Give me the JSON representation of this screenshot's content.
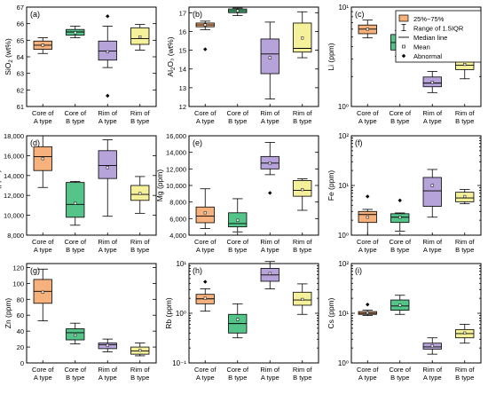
{
  "legend": {
    "items": [
      {
        "kind": "box",
        "label": "25%~75%"
      },
      {
        "kind": "whisker",
        "label": "Range of 1.5IQR"
      },
      {
        "kind": "median",
        "label": "Median line"
      },
      {
        "kind": "mean",
        "label": "Mean"
      },
      {
        "kind": "abnormal",
        "label": "Abnormal"
      }
    ]
  },
  "chart_data": [
    {
      "type": "box",
      "panel": "(a)",
      "ylabel": "SiO2 (wt%)",
      "ylabel_main": "SiO",
      "ylabel_sub": "2",
      "ylabel_tail": " (wt%)",
      "scale": "linear",
      "ylim": [
        61,
        67
      ],
      "ticks": [
        61,
        62,
        63,
        64,
        65,
        66,
        67
      ],
      "tick_labels": [
        "61",
        "62",
        "63",
        "64",
        "65",
        "66",
        "67"
      ],
      "categories": [
        "Core of A type",
        "Core of B type",
        "Rim of A type",
        "Rim of B type"
      ],
      "boxes": [
        {
          "q1": 64.45,
          "median": 64.7,
          "q3": 64.95,
          "wlow": 64.2,
          "whigh": 65.15,
          "mean": 64.7,
          "outliers": []
        },
        {
          "q1": 65.3,
          "median": 65.5,
          "q3": 65.65,
          "wlow": 65.15,
          "whigh": 65.85,
          "mean": 65.45,
          "outliers": []
        },
        {
          "q1": 63.8,
          "median": 64.35,
          "q3": 64.95,
          "wlow": 63.35,
          "whigh": 65.85,
          "mean": 64.3,
          "outliers": [
            66.45,
            61.65
          ]
        },
        {
          "q1": 64.75,
          "median": 65.1,
          "q3": 65.75,
          "wlow": 64.4,
          "whigh": 65.95,
          "mean": 65.2,
          "outliers": []
        }
      ]
    },
    {
      "type": "box",
      "panel": "(b)",
      "ylabel": "Al2O3 (wt%)",
      "ylabel_main": "Al",
      "ylabel_sub": "2",
      "ylabel_tail": "O₃ (wt%)",
      "scale": "linear",
      "ylim": [
        12,
        17.3
      ],
      "ticks": [
        12,
        13,
        14,
        15,
        16,
        17
      ],
      "tick_labels": [
        "12",
        "13",
        "14",
        "15",
        "16",
        "17"
      ],
      "categories": [
        "Core of A type",
        "Core of B type",
        "Rim of A type",
        "Rim of B type"
      ],
      "boxes": [
        {
          "q1": 16.25,
          "median": 16.35,
          "q3": 16.45,
          "wlow": 16.1,
          "whigh": 16.55,
          "mean": 16.35,
          "outliers": [
            15.05
          ]
        },
        {
          "q1": 17.0,
          "median": 17.1,
          "q3": 17.2,
          "wlow": 16.85,
          "whigh": 17.25,
          "mean": 17.1,
          "outliers": []
        },
        {
          "q1": 13.75,
          "median": 14.8,
          "q3": 15.6,
          "wlow": 12.4,
          "whigh": 16.5,
          "mean": 14.6,
          "outliers": []
        },
        {
          "q1": 14.9,
          "median": 15.1,
          "q3": 16.45,
          "wlow": 14.6,
          "whigh": 17.05,
          "mean": 15.65,
          "outliers": []
        }
      ]
    },
    {
      "type": "box",
      "panel": "(c)",
      "ylabel": "Li (ppm)",
      "scale": "log",
      "ylim": [
        1,
        10
      ],
      "ticks": [
        1,
        10
      ],
      "tick_labels": [
        "10⁰",
        "10¹"
      ],
      "categories": [
        "Core of A type",
        "Core of B type",
        "Rim of A type",
        "Rim of B type"
      ],
      "boxes": [
        {
          "q1": 5.4,
          "median": 6.0,
          "q3": 6.6,
          "wlow": 4.9,
          "whigh": 7.4,
          "mean": 6.0,
          "outliers": []
        },
        {
          "q1": 3.7,
          "median": 4.4,
          "q3": 5.3,
          "wlow": 3.2,
          "whigh": 5.8,
          "mean": 4.4,
          "outliers": []
        },
        {
          "q1": 1.58,
          "median": 1.72,
          "q3": 1.98,
          "wlow": 1.38,
          "whigh": 2.25,
          "mean": 1.75,
          "outliers": []
        },
        {
          "q1": 2.35,
          "median": 2.6,
          "q3": 2.95,
          "wlow": 1.9,
          "whigh": 3.55,
          "mean": 2.65,
          "outliers": []
        }
      ]
    },
    {
      "type": "box",
      "panel": "(d)",
      "ylabel": "Na (ppm)",
      "scale": "linear",
      "ylim": [
        8000,
        18000
      ],
      "ticks": [
        8000,
        10000,
        12000,
        14000,
        16000,
        18000
      ],
      "tick_labels": [
        "8,000",
        "10,000",
        "12,000",
        "14,000",
        "16,000",
        "18,000"
      ],
      "categories": [
        "Core of A type",
        "Core of B type",
        "Rim of A type",
        "Rim of B type"
      ],
      "boxes": [
        {
          "q1": 14500,
          "median": 15900,
          "q3": 16900,
          "wlow": 12800,
          "whigh": 18000,
          "mean": 15700,
          "outliers": []
        },
        {
          "q1": 9800,
          "median": 11100,
          "q3": 13300,
          "wlow": 9000,
          "whigh": 13400,
          "mean": 11200,
          "outliers": []
        },
        {
          "q1": 13700,
          "median": 15000,
          "q3": 16500,
          "wlow": 9900,
          "whigh": 17600,
          "mean": 14800,
          "outliers": []
        },
        {
          "q1": 11500,
          "median": 12100,
          "q3": 13000,
          "wlow": 10200,
          "whigh": 13900,
          "mean": 12200,
          "outliers": []
        }
      ]
    },
    {
      "type": "box",
      "panel": "(e)",
      "ylabel": "Mg (ppm)",
      "scale": "linear",
      "ylim": [
        4000,
        16000
      ],
      "ticks": [
        4000,
        6000,
        8000,
        10000,
        12000,
        14000,
        16000
      ],
      "tick_labels": [
        "4,000",
        "6,000",
        "8,000",
        "10,000",
        "12,000",
        "14,000",
        "16,000"
      ],
      "categories": [
        "Core of A type",
        "Core of B type",
        "Rim of A type",
        "Rim of B type"
      ],
      "boxes": [
        {
          "q1": 5500,
          "median": 6300,
          "q3": 7400,
          "wlow": 4800,
          "whigh": 9600,
          "mean": 6700,
          "outliers": []
        },
        {
          "q1": 5000,
          "median": 5400,
          "q3": 6700,
          "wlow": 4400,
          "whigh": 8400,
          "mean": 5800,
          "outliers": []
        },
        {
          "q1": 12000,
          "median": 12700,
          "q3": 13500,
          "wlow": 11300,
          "whigh": 15200,
          "mean": 12700,
          "outliers": [
            9100
          ]
        },
        {
          "q1": 8700,
          "median": 9400,
          "q3": 10600,
          "wlow": 7000,
          "whigh": 10800,
          "mean": 9500,
          "outliers": []
        }
      ]
    },
    {
      "type": "box",
      "panel": "(f)",
      "ylabel": "Fe (ppm)",
      "scale": "log",
      "ylim": [
        1,
        100
      ],
      "ticks": [
        1,
        10,
        100
      ],
      "tick_labels": [
        "10⁰",
        "10¹",
        "10²"
      ],
      "categories": [
        "Core of A type",
        "Core of B type",
        "Rim of A type",
        "Rim of B type"
      ],
      "boxes": [
        {
          "q1": 1.8,
          "median": 2.6,
          "q3": 3.0,
          "wlow": 1.0,
          "whigh": 3.3,
          "mean": 2.3,
          "outliers": [
            6.0
          ]
        },
        {
          "q1": 1.8,
          "median": 2.3,
          "q3": 2.7,
          "wlow": 1.2,
          "whigh": 2.8,
          "mean": 2.3,
          "outliers": [
            5.0
          ]
        },
        {
          "q1": 3.8,
          "median": 7.8,
          "q3": 14.5,
          "wlow": 2.3,
          "whigh": 21.0,
          "mean": 10.0,
          "outliers": []
        },
        {
          "q1": 4.7,
          "median": 5.6,
          "q3": 7.3,
          "wlow": 4.3,
          "whigh": 8.3,
          "mean": 6.0,
          "outliers": []
        }
      ]
    },
    {
      "type": "box",
      "panel": "(g)",
      "ylabel": "Zn (ppm)",
      "scale": "linear",
      "ylim": [
        0,
        125
      ],
      "ticks": [
        0,
        20,
        40,
        60,
        80,
        100,
        120
      ],
      "tick_labels": [
        "0",
        "20",
        "40",
        "60",
        "80",
        "100",
        "120"
      ],
      "categories": [
        "Core of A type",
        "Core of B type",
        "Rim of A type",
        "Rim of B type"
      ],
      "boxes": [
        {
          "q1": 75,
          "median": 90,
          "q3": 105,
          "wlow": 53,
          "whigh": 118,
          "mean": 89,
          "outliers": []
        },
        {
          "q1": 29,
          "median": 38,
          "q3": 43,
          "wlow": 24,
          "whigh": 50,
          "mean": 35,
          "outliers": []
        },
        {
          "q1": 18,
          "median": 23,
          "q3": 25,
          "wlow": 14,
          "whigh": 30,
          "mean": 22,
          "outliers": []
        },
        {
          "q1": 11,
          "median": 15,
          "q3": 20,
          "wlow": 9,
          "whigh": 25,
          "mean": 16,
          "outliers": []
        }
      ]
    },
    {
      "type": "box",
      "panel": "(h)",
      "ylabel": "Rb (ppm)",
      "scale": "log",
      "ylim": [
        0.1,
        10
      ],
      "ticks": [
        0.1,
        1,
        10
      ],
      "tick_labels": [
        "10⁻¹",
        "10⁰",
        "10¹"
      ],
      "categories": [
        "Core of A type",
        "Core of B type",
        "Rim of A type",
        "Rim of B type"
      ],
      "boxes": [
        {
          "q1": 1.55,
          "median": 1.95,
          "q3": 2.4,
          "wlow": 1.1,
          "whigh": 3.1,
          "mean": 2.0,
          "outliers": [
            4.3
          ]
        },
        {
          "q1": 0.4,
          "median": 0.62,
          "q3": 0.95,
          "wlow": 0.32,
          "whigh": 1.55,
          "mean": 0.75,
          "outliers": []
        },
        {
          "q1": 4.4,
          "median": 5.9,
          "q3": 8.0,
          "wlow": 3.1,
          "whigh": 11.0,
          "mean": 6.3,
          "outliers": []
        },
        {
          "q1": 1.45,
          "median": 1.85,
          "q3": 2.65,
          "wlow": 0.95,
          "whigh": 3.9,
          "mean": 1.9,
          "outliers": []
        }
      ]
    },
    {
      "type": "box",
      "panel": "(i)",
      "ylabel": "Cs (ppm)",
      "scale": "log",
      "ylim": [
        1,
        100
      ],
      "ticks": [
        1,
        10,
        100
      ],
      "tick_labels": [
        "10⁰",
        "10¹",
        "10²"
      ],
      "categories": [
        "Core of A type",
        "Core of B type",
        "Rim of A type",
        "Rim of B type"
      ],
      "boxes": [
        {
          "q1": 9.5,
          "median": 10.0,
          "q3": 10.8,
          "wlow": 9.0,
          "whigh": 11.5,
          "mean": 10.2,
          "outliers": [
            15.0
          ]
        },
        {
          "q1": 11.5,
          "median": 14.0,
          "q3": 18.5,
          "wlow": 9.5,
          "whigh": 23.0,
          "mean": 14.5,
          "outliers": []
        },
        {
          "q1": 1.9,
          "median": 2.1,
          "q3": 2.5,
          "wlow": 1.5,
          "whigh": 3.2,
          "mean": 2.2,
          "outliers": []
        },
        {
          "q1": 3.2,
          "median": 3.9,
          "q3": 4.7,
          "wlow": 2.5,
          "whigh": 6.0,
          "mean": 4.0,
          "outliers": []
        }
      ]
    }
  ],
  "colors": {
    "fills": [
      "#f6b17c",
      "#55c489",
      "#b6a3d9",
      "#f5f09a"
    ],
    "legend_fill": "#f6b17c",
    "axis": "#000000"
  }
}
